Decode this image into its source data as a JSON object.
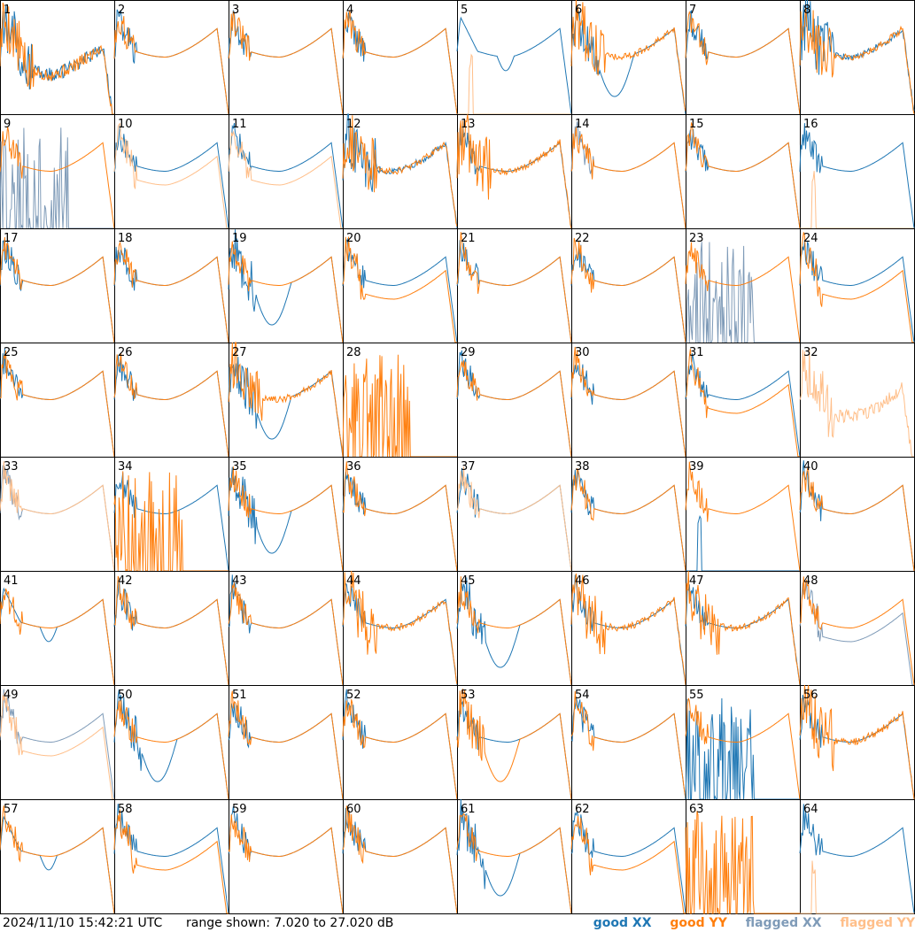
{
  "footer": {
    "timestamp": "2024/11/10 15:42:21 UTC",
    "range_text": "range shown: 7.020 to 27.020 dB"
  },
  "chart_data": {
    "type": "line",
    "grid_layout": "8x8 small multiples",
    "ylim_db": [
      7.02,
      27.02
    ],
    "legend_placement": "bottom-right",
    "legend": [
      {
        "label": "good XX",
        "color": "#1f77b4"
      },
      {
        "label": "good YY",
        "color": "#ff7f0e"
      },
      {
        "label": "flagged XX",
        "color": "#7f9bb8"
      },
      {
        "label": "flagged YY",
        "color": "#ffbf8a"
      }
    ],
    "tiles": [
      {
        "id": "1",
        "xx": "spiky-low",
        "yy": "spiky-low",
        "xx_flag": false,
        "yy_flag": false
      },
      {
        "id": "2",
        "xx": "normal",
        "yy": "normal",
        "xx_flag": false,
        "yy_flag": false
      },
      {
        "id": "3",
        "xx": "normal",
        "yy": "normal",
        "xx_flag": false,
        "yy_flag": false
      },
      {
        "id": "4",
        "xx": "normal",
        "yy": "normal",
        "xx_flag": false,
        "yy_flag": false
      },
      {
        "id": "5",
        "xx": "dip",
        "yy": "dead-spike",
        "xx_flag": false,
        "yy_flag": true
      },
      {
        "id": "6",
        "xx": "deep-dip",
        "yy": "spiky",
        "xx_flag": false,
        "yy_flag": false
      },
      {
        "id": "7",
        "xx": "normal",
        "yy": "normal",
        "xx_flag": false,
        "yy_flag": false
      },
      {
        "id": "8",
        "xx": "spiky",
        "yy": "spiky",
        "xx_flag": false,
        "yy_flag": false
      },
      {
        "id": "9",
        "xx": "dead-bars",
        "yy": "normal",
        "xx_flag": true,
        "yy_flag": false
      },
      {
        "id": "10",
        "xx": "normal",
        "yy": "low",
        "xx_flag": false,
        "yy_flag": true
      },
      {
        "id": "11",
        "xx": "normal",
        "yy": "low",
        "xx_flag": false,
        "yy_flag": true
      },
      {
        "id": "12",
        "xx": "spiky",
        "yy": "spiky",
        "xx_flag": false,
        "yy_flag": false
      },
      {
        "id": "13",
        "xx": "normal",
        "yy": "spiky",
        "xx_flag": false,
        "yy_flag": false
      },
      {
        "id": "14",
        "xx": "normal",
        "yy": "normal",
        "xx_flag": true,
        "yy_flag": false
      },
      {
        "id": "15",
        "xx": "normal",
        "yy": "normal",
        "xx_flag": false,
        "yy_flag": false
      },
      {
        "id": "16",
        "xx": "normal",
        "yy": "dead-spike",
        "xx_flag": false,
        "yy_flag": true
      },
      {
        "id": "17",
        "xx": "normal",
        "yy": "normal",
        "xx_flag": false,
        "yy_flag": false
      },
      {
        "id": "18",
        "xx": "normal",
        "yy": "normal",
        "xx_flag": false,
        "yy_flag": false
      },
      {
        "id": "19",
        "xx": "deep-dip",
        "yy": "normal",
        "xx_flag": false,
        "yy_flag": false
      },
      {
        "id": "20",
        "xx": "normal",
        "yy": "low",
        "xx_flag": false,
        "yy_flag": false
      },
      {
        "id": "21",
        "xx": "normal",
        "yy": "normal",
        "xx_flag": false,
        "yy_flag": false
      },
      {
        "id": "22",
        "xx": "normal",
        "yy": "normal",
        "xx_flag": false,
        "yy_flag": false
      },
      {
        "id": "23",
        "xx": "dead-bars",
        "yy": "normal",
        "xx_flag": true,
        "yy_flag": false
      },
      {
        "id": "24",
        "xx": "normal",
        "yy": "low",
        "xx_flag": false,
        "yy_flag": false
      },
      {
        "id": "25",
        "xx": "normal",
        "yy": "normal",
        "xx_flag": false,
        "yy_flag": false
      },
      {
        "id": "26",
        "xx": "normal",
        "yy": "normal",
        "xx_flag": false,
        "yy_flag": false
      },
      {
        "id": "27",
        "xx": "deep-dip",
        "yy": "spiky",
        "xx_flag": false,
        "yy_flag": false
      },
      {
        "id": "28",
        "xx": "none",
        "yy": "dead-bars",
        "xx_flag": false,
        "yy_flag": false
      },
      {
        "id": "29",
        "xx": "normal",
        "yy": "normal",
        "xx_flag": false,
        "yy_flag": false
      },
      {
        "id": "30",
        "xx": "normal",
        "yy": "normal",
        "xx_flag": false,
        "yy_flag": false
      },
      {
        "id": "31",
        "xx": "normal",
        "yy": "low",
        "xx_flag": false,
        "yy_flag": false
      },
      {
        "id": "32",
        "xx": "none",
        "yy": "spiky-low",
        "xx_flag": false,
        "yy_flag": true
      },
      {
        "id": "33",
        "xx": "normal",
        "yy": "normal",
        "xx_flag": true,
        "yy_flag": true
      },
      {
        "id": "34",
        "xx": "normal",
        "yy": "dead-bars",
        "xx_flag": false,
        "yy_flag": false
      },
      {
        "id": "35",
        "xx": "deep-dip",
        "yy": "normal",
        "xx_flag": false,
        "yy_flag": false
      },
      {
        "id": "36",
        "xx": "normal",
        "yy": "normal",
        "xx_flag": false,
        "yy_flag": false
      },
      {
        "id": "37",
        "xx": "normal",
        "yy": "normal",
        "xx_flag": false,
        "yy_flag": true
      },
      {
        "id": "38",
        "xx": "normal",
        "yy": "normal",
        "xx_flag": false,
        "yy_flag": false
      },
      {
        "id": "39",
        "xx": "dead-spike",
        "yy": "normal",
        "xx_flag": false,
        "yy_flag": false
      },
      {
        "id": "40",
        "xx": "normal",
        "yy": "normal",
        "xx_flag": false,
        "yy_flag": false
      },
      {
        "id": "41",
        "xx": "dip",
        "yy": "normal",
        "xx_flag": false,
        "yy_flag": false
      },
      {
        "id": "42",
        "xx": "normal",
        "yy": "normal",
        "xx_flag": false,
        "yy_flag": false
      },
      {
        "id": "43",
        "xx": "normal",
        "yy": "normal",
        "xx_flag": false,
        "yy_flag": false
      },
      {
        "id": "44",
        "xx": "normal",
        "yy": "spiky",
        "xx_flag": false,
        "yy_flag": false
      },
      {
        "id": "45",
        "xx": "deep-dip",
        "yy": "normal",
        "xx_flag": false,
        "yy_flag": false
      },
      {
        "id": "46",
        "xx": "normal",
        "yy": "spiky",
        "xx_flag": false,
        "yy_flag": false
      },
      {
        "id": "47",
        "xx": "normal",
        "yy": "spiky",
        "xx_flag": false,
        "yy_flag": false
      },
      {
        "id": "48",
        "xx": "low",
        "yy": "normal",
        "xx_flag": true,
        "yy_flag": false
      },
      {
        "id": "49",
        "xx": "normal",
        "yy": "low",
        "xx_flag": true,
        "yy_flag": true
      },
      {
        "id": "50",
        "xx": "deep-dip",
        "yy": "normal",
        "xx_flag": false,
        "yy_flag": false
      },
      {
        "id": "51",
        "xx": "normal",
        "yy": "normal",
        "xx_flag": false,
        "yy_flag": false
      },
      {
        "id": "52",
        "xx": "normal",
        "yy": "normal",
        "xx_flag": false,
        "yy_flag": false
      },
      {
        "id": "53",
        "xx": "normal",
        "yy": "deep-dip",
        "xx_flag": false,
        "yy_flag": false
      },
      {
        "id": "54",
        "xx": "normal",
        "yy": "normal",
        "xx_flag": false,
        "yy_flag": false
      },
      {
        "id": "55",
        "xx": "dead-bars",
        "yy": "normal",
        "xx_flag": false,
        "yy_flag": false
      },
      {
        "id": "56",
        "xx": "normal",
        "yy": "spiky",
        "xx_flag": false,
        "yy_flag": false
      },
      {
        "id": "57",
        "xx": "dip",
        "yy": "normal",
        "xx_flag": false,
        "yy_flag": false
      },
      {
        "id": "58",
        "xx": "normal",
        "yy": "low",
        "xx_flag": false,
        "yy_flag": false
      },
      {
        "id": "59",
        "xx": "normal",
        "yy": "normal",
        "xx_flag": false,
        "yy_flag": false
      },
      {
        "id": "60",
        "xx": "normal",
        "yy": "normal",
        "xx_flag": false,
        "yy_flag": false
      },
      {
        "id": "61",
        "xx": "deep-dip",
        "yy": "normal",
        "xx_flag": false,
        "yy_flag": false
      },
      {
        "id": "62",
        "xx": "normal",
        "yy": "low",
        "xx_flag": false,
        "yy_flag": false
      },
      {
        "id": "63",
        "xx": "none",
        "yy": "dead-bars",
        "xx_flag": false,
        "yy_flag": false
      },
      {
        "id": "64",
        "xx": "normal",
        "yy": "dead-spike",
        "xx_flag": false,
        "yy_flag": true
      }
    ]
  }
}
